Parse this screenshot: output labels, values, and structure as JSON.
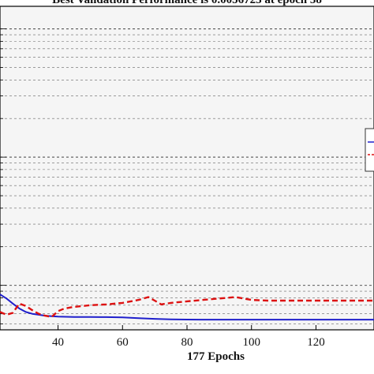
{
  "chart_data": {
    "type": "line",
    "title": "Best Validation Performance is 0.0056723 at epoch 38",
    "xlabel": "177 Epochs",
    "ylabel": "",
    "x_ticks": [
      40,
      60,
      80,
      100,
      120
    ],
    "xlim": [
      22,
      138
    ],
    "y_scale": "log",
    "ylim": [
      0.0045,
      1.5
    ],
    "grid": true,
    "legend_position": "right",
    "series": [
      {
        "name": "",
        "color": "#1f1fcc",
        "style": "solid",
        "x": [
          22,
          24,
          26,
          28,
          30,
          32,
          34,
          36,
          38,
          40,
          45,
          50,
          55,
          60,
          65,
          70,
          75,
          80,
          85,
          90,
          95,
          100,
          105,
          110,
          115,
          120,
          125,
          130,
          135,
          138
        ],
        "y": [
          0.0085,
          0.0079,
          0.0072,
          0.0066,
          0.0062,
          0.006,
          0.0059,
          0.0058,
          0.00575,
          0.0057,
          0.00567,
          0.00566,
          0.00565,
          0.00562,
          0.00555,
          0.00548,
          0.00543,
          0.00541,
          0.0054,
          0.0054,
          0.0054,
          0.0054,
          0.0054,
          0.0054,
          0.0054,
          0.0054,
          0.0054,
          0.0054,
          0.0054,
          0.0054
        ]
      },
      {
        "name": "",
        "color": "#dd1111",
        "style": "dashed",
        "x": [
          22,
          24,
          26,
          28,
          30,
          32,
          34,
          36,
          38,
          40,
          42,
          45,
          50,
          55,
          60,
          65,
          68,
          70,
          72,
          75,
          80,
          85,
          90,
          95,
          100,
          105,
          110,
          115,
          120,
          125,
          130,
          135,
          138
        ],
        "y": [
          0.0062,
          0.0059,
          0.0061,
          0.0072,
          0.0069,
          0.0064,
          0.006,
          0.0058,
          0.0056723,
          0.0063,
          0.0066,
          0.0068,
          0.007,
          0.0071,
          0.0073,
          0.0077,
          0.0081,
          0.0076,
          0.0071,
          0.0073,
          0.0075,
          0.0077,
          0.0079,
          0.0081,
          0.0077,
          0.0076,
          0.0076,
          0.0076,
          0.0076,
          0.0076,
          0.0076,
          0.0076,
          0.0076
        ]
      }
    ]
  }
}
